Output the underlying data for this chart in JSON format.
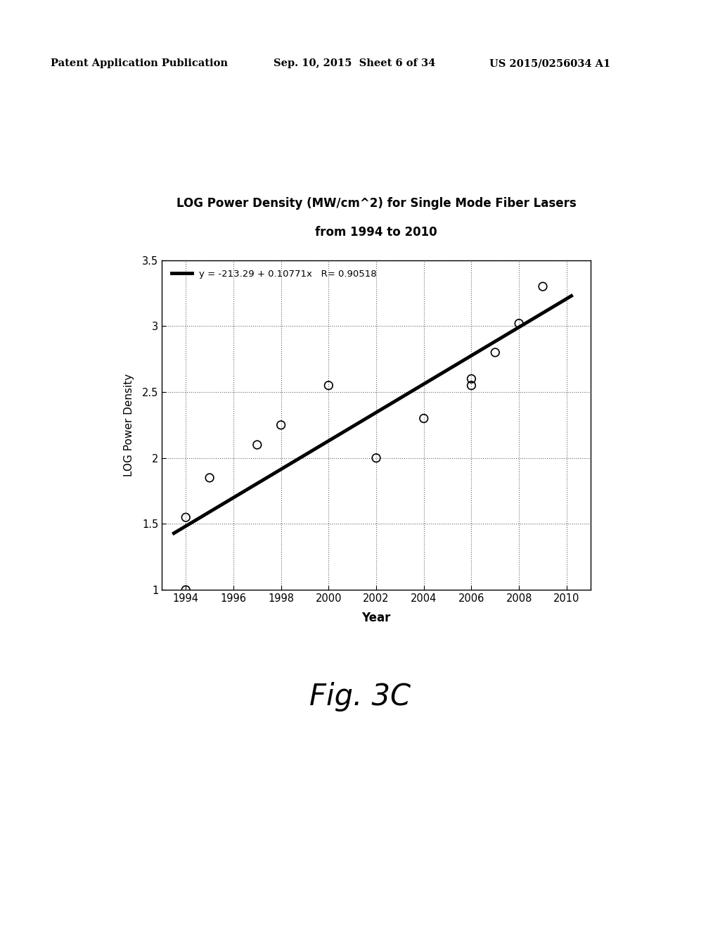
{
  "title_line1": "LOG Power Density (MW/cm^2) for Single Mode Fiber Lasers",
  "title_line2": "from 1994 to 2010",
  "xlabel": "Year",
  "ylabel": "LOG Power Density",
  "xlim": [
    1993,
    2011
  ],
  "ylim": [
    1.0,
    3.5
  ],
  "xticks": [
    1994,
    1996,
    1998,
    2000,
    2002,
    2004,
    2006,
    2008,
    2010
  ],
  "ytick_vals": [
    1.0,
    1.5,
    2.0,
    2.5,
    3.0,
    3.5
  ],
  "ytick_labels": [
    "1",
    "1.5",
    "2",
    "2.5",
    "3",
    "3.5"
  ],
  "scatter_x": [
    1994,
    1994,
    1995,
    1997,
    1998,
    2000,
    2002,
    2004,
    2006,
    2006,
    2007,
    2008,
    2009
  ],
  "scatter_y": [
    1.55,
    1.0,
    1.85,
    2.1,
    2.25,
    2.55,
    2.0,
    2.3,
    2.6,
    2.55,
    2.8,
    3.02,
    3.3
  ],
  "reg_intercept": -213.29,
  "reg_slope": 0.10771,
  "reg_label": "y = -213.29 + 0.10771x   R= 0.90518",
  "reg_x_start": 1993.5,
  "reg_x_end": 2010.2,
  "line_color": "#000000",
  "scatter_color": "#000000",
  "background_color": "#ffffff",
  "header_left": "Patent Application Publication",
  "header_center": "Sep. 10, 2015  Sheet 6 of 34",
  "header_right": "US 2015/0256034 A1",
  "fig_label": "Fig. 3C"
}
